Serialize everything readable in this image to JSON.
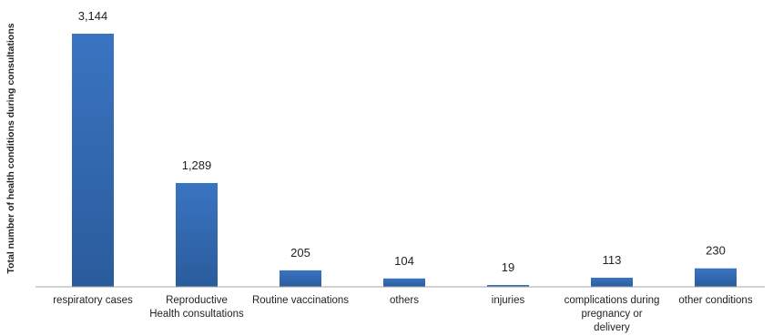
{
  "chart_data": {
    "type": "bar",
    "title": "",
    "xlabel": "",
    "ylabel": "Total number of health conditions during consultations",
    "categories": [
      "respiratory cases",
      "Reproductive Health consultations",
      "Routine vaccinations",
      "others",
      "injuries",
      "complications during pregnancy or delivery",
      "other conditions"
    ],
    "category_lines": [
      [
        "respiratory cases"
      ],
      [
        "Reproductive",
        "Health consultations"
      ],
      [
        "Routine vaccinations"
      ],
      [
        "others"
      ],
      [
        "injuries"
      ],
      [
        "complications during",
        "pregnancy or",
        "delivery"
      ],
      [
        "other conditions"
      ]
    ],
    "values": [
      3144,
      1289,
      205,
      104,
      19,
      113,
      230
    ],
    "value_labels": [
      "3,144",
      "1,289",
      "205",
      "104",
      "19",
      "113",
      "230"
    ],
    "ylim": [
      0,
      3144
    ],
    "grid": false,
    "legend": "none",
    "bar_color": "#3a74c1",
    "bar_color_dark": "#2a5c9c",
    "axis_color": "#a6a6a6"
  }
}
